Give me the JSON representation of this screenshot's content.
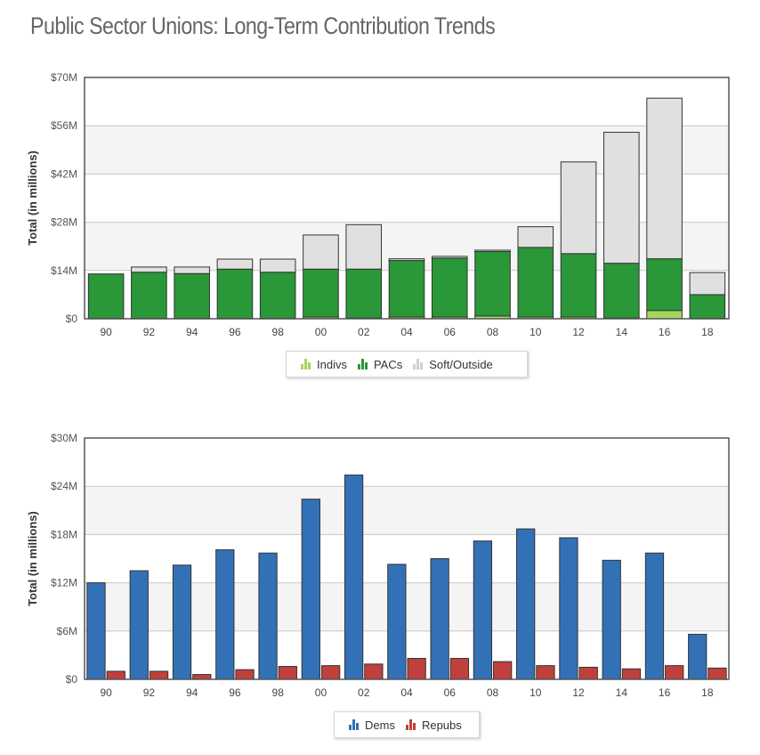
{
  "page": {
    "title": "Public Sector Unions: Long-Term Contribution Trends"
  },
  "chart_data": [
    {
      "type": "bar",
      "stacked": true,
      "categories": [
        "90",
        "92",
        "94",
        "96",
        "98",
        "00",
        "02",
        "04",
        "06",
        "08",
        "10",
        "12",
        "14",
        "16",
        "18"
      ],
      "series": [
        {
          "name": "Indivs",
          "color": "#a4d65e",
          "values": [
            0.1,
            0.1,
            0.1,
            0.1,
            0.1,
            0.5,
            0.2,
            0.5,
            0.5,
            0.8,
            0.5,
            0.5,
            0.2,
            2.4,
            0.1
          ]
        },
        {
          "name": "PACs",
          "color": "#2a9739",
          "values": [
            12.9,
            13.4,
            13.0,
            14.3,
            13.4,
            13.9,
            14.2,
            16.4,
            17.1,
            18.7,
            20.2,
            18.4,
            15.9,
            15.0,
            6.9
          ]
        },
        {
          "name": "Soft/Outside",
          "color": "#e0e0e0",
          "values": [
            0.0,
            1.5,
            1.9,
            2.9,
            3.8,
            9.9,
            12.9,
            0.5,
            0.5,
            0.4,
            6.0,
            26.6,
            38.0,
            46.6,
            6.4
          ]
        }
      ],
      "ylabel": "Total (in millions)",
      "yticks": [
        "$0",
        "$14M",
        "$28M",
        "$42M",
        "$56M",
        "$70M"
      ],
      "ylim": [
        0,
        70
      ],
      "grid": true,
      "legend_position": "bottom-center"
    },
    {
      "type": "bar",
      "stacked": false,
      "categories": [
        "90",
        "92",
        "94",
        "96",
        "98",
        "00",
        "02",
        "04",
        "06",
        "08",
        "10",
        "12",
        "14",
        "16",
        "18"
      ],
      "series": [
        {
          "name": "Dems",
          "color": "#3371b7",
          "values": [
            12.0,
            13.5,
            14.2,
            16.1,
            15.7,
            22.4,
            25.4,
            14.3,
            15.0,
            17.2,
            18.7,
            17.6,
            14.8,
            15.7,
            5.6
          ]
        },
        {
          "name": "Repubs",
          "color": "#c0403e",
          "values": [
            1.0,
            1.0,
            0.6,
            1.2,
            1.6,
            1.7,
            1.9,
            2.6,
            2.6,
            2.2,
            1.7,
            1.5,
            1.3,
            1.7,
            1.4
          ]
        }
      ],
      "ylabel": "Total (in millions)",
      "yticks": [
        "$0",
        "$6M",
        "$12M",
        "$18M",
        "$24M",
        "$30M"
      ],
      "ylim": [
        0,
        30
      ],
      "grid": true,
      "legend_position": "bottom-center"
    }
  ]
}
